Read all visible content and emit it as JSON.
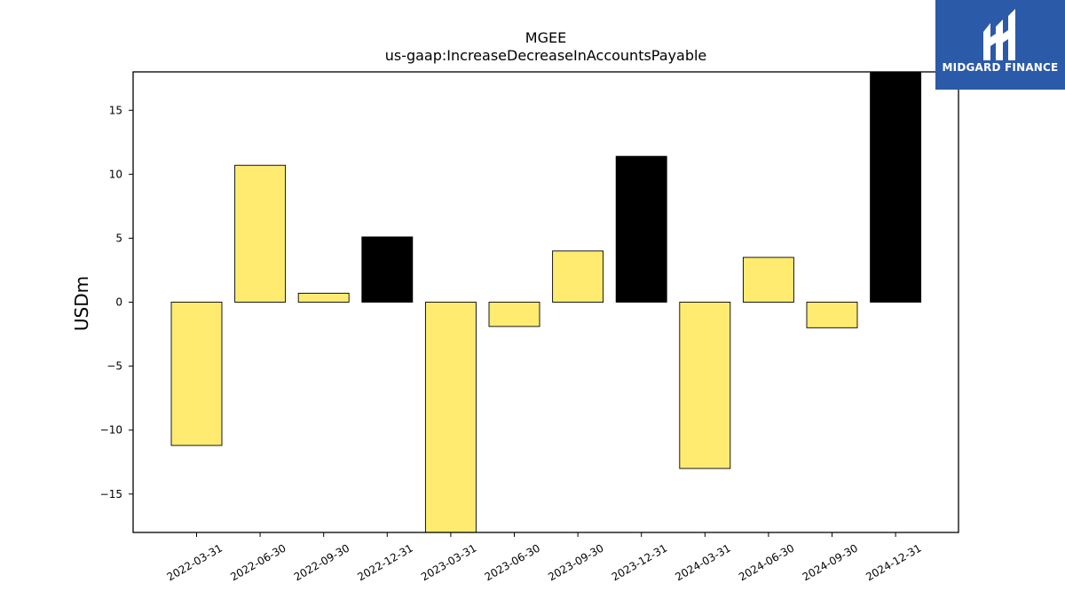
{
  "logo": {
    "text": "MIDGARD FINANCE"
  },
  "chart_data": {
    "type": "bar",
    "title": "MGEE",
    "subtitle": "us-gaap:IncreaseDecreaseInAccountsPayable",
    "xlabel": "",
    "ylabel": "USDm",
    "ylim": [
      -18,
      18
    ],
    "yticks": [
      -15,
      -10,
      -5,
      0,
      5,
      10,
      15
    ],
    "categories": [
      "2022-03-31",
      "2022-06-30",
      "2022-09-30",
      "2022-12-31",
      "2023-03-31",
      "2023-06-30",
      "2023-09-30",
      "2023-12-31",
      "2024-03-31",
      "2024-06-30",
      "2024-09-30",
      "2024-12-31"
    ],
    "values": [
      -11.2,
      10.7,
      0.7,
      5.1,
      -18.5,
      -1.9,
      4.0,
      11.4,
      -13.0,
      3.5,
      -2.0,
      18.5
    ],
    "colors": [
      "#ffeb70",
      "#ffeb70",
      "#ffeb70",
      "#000000",
      "#ffeb70",
      "#ffeb70",
      "#ffeb70",
      "#000000",
      "#ffeb70",
      "#ffeb70",
      "#ffeb70",
      "#000000"
    ],
    "grid": false,
    "legend": "none"
  }
}
